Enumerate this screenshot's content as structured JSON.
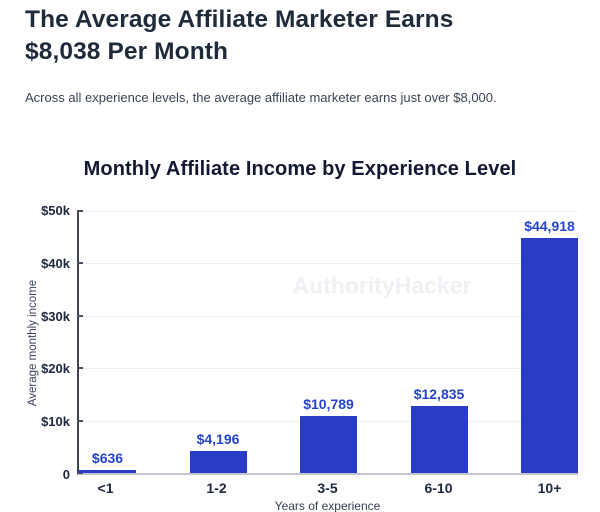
{
  "header": {
    "title_line1": "The Average Affiliate Marketer Earns",
    "title_line2": "$8,038 Per Month",
    "subtitle": "Across all experience levels, the average affiliate marketer earns just over $8,000."
  },
  "chart": {
    "watermark": "AuthorityHacker"
  },
  "chart_data": {
    "type": "bar",
    "title": "Monthly Affiliate Income by Experience Level",
    "categories": [
      "<1",
      "1-2",
      "3-5",
      "6-10",
      "10+"
    ],
    "values": [
      636,
      4196,
      10789,
      12835,
      44918
    ],
    "value_labels": [
      "$636",
      "$4,196",
      "$10,789",
      "$12,835",
      "$44,918"
    ],
    "xlabel": "Years of experience",
    "ylabel": "Average monthly income",
    "ylim": [
      0,
      50000
    ],
    "ytick_labels": [
      "0",
      "$10k",
      "$20k",
      "$30k",
      "$40k",
      "$50k"
    ],
    "grid": true,
    "legend": "none",
    "bar_color": "#2b3cc4",
    "value_label_color": "#2544cd",
    "heading_color": "#1f2a3a",
    "watermark_color": "#eff0f4"
  }
}
